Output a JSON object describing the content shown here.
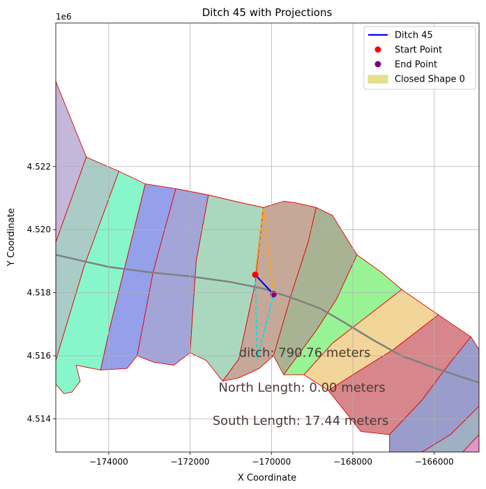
{
  "chart_data": {
    "type": "map",
    "title": "Ditch 45 with Projections",
    "xlabel": "X Coordinate",
    "ylabel": "Y Coordinate",
    "y_offset_label": "1e6",
    "xlim": [
      -175300,
      -164900
    ],
    "ylim": [
      4512950,
      4526550
    ],
    "xticks": [
      -174000,
      -172000,
      -170000,
      -168000,
      -166000
    ],
    "xtick_labels": [
      "−174000",
      "−172000",
      "−170000",
      "−168000",
      "−166000"
    ],
    "yticks": [
      4514000,
      4516000,
      4518000,
      4520000,
      4522000
    ],
    "ytick_labels": [
      "4.514",
      "4.516",
      "4.518",
      "4.520",
      "4.522"
    ],
    "grid": true,
    "legend_position": "top-right",
    "legend": [
      {
        "label": "Ditch 45",
        "kind": "line",
        "color": "#0000ff"
      },
      {
        "label": "Start Point",
        "kind": "marker",
        "color": "#ff0000"
      },
      {
        "label": "End Point",
        "kind": "marker",
        "color": "#800080"
      },
      {
        "label": "Closed Shape 0",
        "kind": "patch",
        "color": "#e4e18a"
      }
    ],
    "ditch": {
      "x": [
        -170400,
        -169950
      ],
      "y": [
        4518570,
        4517950
      ],
      "color": "#0000ff"
    },
    "start_point": {
      "x": -170400,
      "y": 4518570,
      "color": "#ff0000"
    },
    "end_point": {
      "x": -169950,
      "y": 4517950,
      "color": "#800080"
    },
    "north_projection": {
      "color": "#ffa500",
      "x": [
        -170400,
        -170200,
        -169950
      ],
      "y": [
        4518570,
        4520700,
        4517950
      ]
    },
    "south_projection": {
      "color": "#00e5e5",
      "x": [
        -170400,
        -170350,
        -169950
      ],
      "y": [
        4518570,
        4515900,
        4517950
      ]
    },
    "road": {
      "color": "#808080",
      "x": [
        -175300,
        -174000,
        -173000,
        -172000,
        -171000,
        -170200,
        -169500,
        -168800,
        -168200,
        -167500,
        -166800,
        -166000,
        -165500,
        -164900
      ],
      "y": [
        4519200,
        4518820,
        4518650,
        4518520,
        4518340,
        4518130,
        4517840,
        4517500,
        4517050,
        4516500,
        4516000,
        4515620,
        4515400,
        4515150
      ]
    },
    "annotations": [
      {
        "text": "ditch: 790.76 meters",
        "x": -170800,
        "y": 4516100
      },
      {
        "text": "North Length: 0.00 meters",
        "x": -171300,
        "y": 4515000
      },
      {
        "text": "South Length: 17.44 meters",
        "x": -171450,
        "y": 4513950
      }
    ],
    "regions": [
      {
        "fill": "#c3b7da",
        "points": [
          [
            -175300,
            4524700
          ],
          [
            -174550,
            4522300
          ],
          [
            -175300,
            4519600
          ]
        ]
      },
      {
        "fill": "#a9ccc7",
        "points": [
          [
            -174550,
            4522300
          ],
          [
            -173750,
            4521850
          ],
          [
            -174600,
            4518850
          ],
          [
            -175300,
            4515850
          ],
          [
            -175300,
            4519600
          ]
        ]
      },
      {
        "fill": "#88f6cb",
        "points": [
          [
            -173750,
            4521850
          ],
          [
            -173100,
            4521450
          ],
          [
            -173950,
            4517000
          ],
          [
            -174200,
            4515550
          ],
          [
            -174800,
            4515700
          ],
          [
            -174700,
            4515200
          ],
          [
            -174900,
            4514850
          ],
          [
            -175100,
            4514800
          ],
          [
            -175300,
            4515100
          ],
          [
            -175300,
            4515850
          ],
          [
            -174600,
            4518850
          ]
        ]
      },
      {
        "fill": "#95a0eb",
        "points": [
          [
            -173100,
            4521450
          ],
          [
            -172350,
            4521300
          ],
          [
            -172900,
            4518700
          ],
          [
            -173300,
            4516000
          ],
          [
            -173550,
            4515600
          ],
          [
            -174200,
            4515550
          ],
          [
            -173950,
            4517000
          ]
        ]
      },
      {
        "fill": "#a3a4d8",
        "points": [
          [
            -172350,
            4521300
          ],
          [
            -171550,
            4521100
          ],
          [
            -171850,
            4519000
          ],
          [
            -172000,
            4516100
          ],
          [
            -172400,
            4515700
          ],
          [
            -172900,
            4515800
          ],
          [
            -173300,
            4516000
          ],
          [
            -172900,
            4518700
          ]
        ]
      },
      {
        "fill": "#a9d8bf",
        "points": [
          [
            -171550,
            4521100
          ],
          [
            -170900,
            4520900
          ],
          [
            -170200,
            4520700
          ],
          [
            -170400,
            4518300
          ],
          [
            -170800,
            4515900
          ],
          [
            -171200,
            4515200
          ],
          [
            -171600,
            4515850
          ],
          [
            -172000,
            4516100
          ],
          [
            -171850,
            4519000
          ]
        ]
      },
      {
        "fill": "#c6a898",
        "points": [
          [
            -170200,
            4520700
          ],
          [
            -169700,
            4520900
          ],
          [
            -169400,
            4520850
          ],
          [
            -168900,
            4520700
          ],
          [
            -169100,
            4519600
          ],
          [
            -169500,
            4518000
          ],
          [
            -169950,
            4516000
          ],
          [
            -170300,
            4515600
          ],
          [
            -170800,
            4515300
          ],
          [
            -171200,
            4515200
          ],
          [
            -170800,
            4515900
          ],
          [
            -170400,
            4518300
          ]
        ]
      },
      {
        "fill": "#a8b393",
        "points": [
          [
            -168900,
            4520700
          ],
          [
            -168500,
            4520450
          ],
          [
            -167900,
            4519200
          ],
          [
            -168400,
            4517800
          ],
          [
            -168900,
            4516800
          ],
          [
            -169700,
            4515400
          ],
          [
            -169950,
            4516000
          ],
          [
            -169500,
            4518000
          ],
          [
            -169100,
            4519600
          ]
        ]
      },
      {
        "fill": "#98f394",
        "points": [
          [
            -167900,
            4519200
          ],
          [
            -167300,
            4518650
          ],
          [
            -166800,
            4518100
          ],
          [
            -167800,
            4517100
          ],
          [
            -168500,
            4516400
          ],
          [
            -169200,
            4515400
          ],
          [
            -169700,
            4515400
          ],
          [
            -168900,
            4516800
          ],
          [
            -168400,
            4517800
          ]
        ]
      },
      {
        "fill": "#f2d598",
        "points": [
          [
            -166800,
            4518100
          ],
          [
            -165900,
            4517300
          ],
          [
            -167000,
            4516200
          ],
          [
            -168000,
            4515400
          ],
          [
            -168600,
            4514900
          ],
          [
            -169200,
            4515400
          ],
          [
            -168500,
            4516400
          ],
          [
            -167800,
            4517100
          ]
        ]
      },
      {
        "fill": "#d7868c",
        "points": [
          [
            -165900,
            4517300
          ],
          [
            -165100,
            4516600
          ],
          [
            -165600,
            4515800
          ],
          [
            -166300,
            4514600
          ],
          [
            -167100,
            4513500
          ],
          [
            -167800,
            4513600
          ],
          [
            -168600,
            4514900
          ],
          [
            -168000,
            4515400
          ],
          [
            -167000,
            4516200
          ]
        ]
      },
      {
        "fill": "#9a9ccb",
        "points": [
          [
            -165100,
            4516600
          ],
          [
            -164900,
            4516200
          ],
          [
            -164900,
            4514400
          ],
          [
            -165600,
            4513500
          ],
          [
            -166300,
            4512950
          ],
          [
            -167100,
            4512950
          ],
          [
            -167100,
            4513500
          ],
          [
            -166300,
            4514600
          ],
          [
            -165600,
            4515800
          ]
        ]
      },
      {
        "fill": "#9fb0c4",
        "points": [
          [
            -164900,
            4514400
          ],
          [
            -164900,
            4513500
          ],
          [
            -165300,
            4512950
          ],
          [
            -166300,
            4512950
          ],
          [
            -165600,
            4513500
          ]
        ]
      },
      {
        "fill": "#dd98cb",
        "points": [
          [
            -164900,
            4513500
          ],
          [
            -164900,
            4512950
          ],
          [
            -165300,
            4512950
          ]
        ]
      }
    ]
  }
}
